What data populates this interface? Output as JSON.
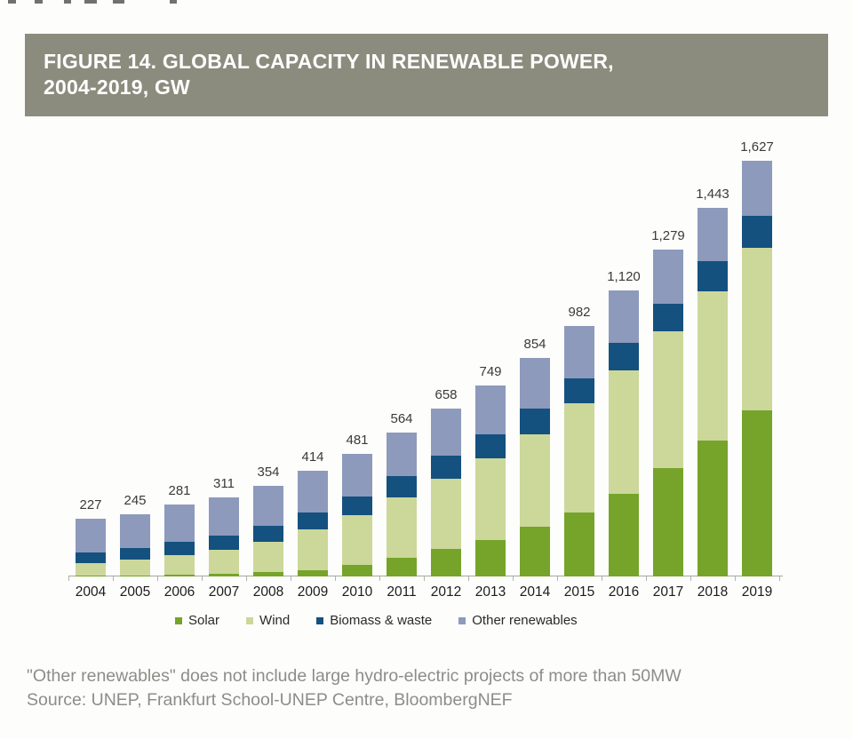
{
  "figure": {
    "title_line1": "FIGURE 14. GLOBAL CAPACITY IN RENEWABLE POWER,",
    "title_line2": "2004-2019, GW"
  },
  "footnote": "\"Other renewables\" does not include large hydro-electric projects of more than 50MW",
  "source": "Source: UNEP, Frankfurt School-UNEP Centre, BloombergNEF",
  "chart_data": {
    "type": "bar",
    "stacked": true,
    "title": "FIGURE 14. GLOBAL CAPACITY IN RENEWABLE POWER, 2004-2019, GW",
    "unit": "GW",
    "grid": false,
    "legend_position": "bottom",
    "ylim": [
      0,
      1700
    ],
    "categories": [
      "2004",
      "2005",
      "2006",
      "2007",
      "2008",
      "2009",
      "2010",
      "2011",
      "2012",
      "2013",
      "2014",
      "2015",
      "2016",
      "2017",
      "2018",
      "2019"
    ],
    "series": [
      {
        "name": "Solar",
        "color": "#76a42a",
        "values": [
          4,
          5,
          7,
          10,
          16,
          25,
          45,
          72,
          107,
          141,
          193,
          249,
          324,
          425,
          531,
          651
        ]
      },
      {
        "name": "Wind",
        "color": "#ccd79a",
        "values": [
          48,
          60,
          76,
          94,
          121,
          160,
          195,
          237,
          274,
          321,
          365,
          428,
          481,
          534,
          586,
          637
        ]
      },
      {
        "name": "Biomass & waste",
        "color": "#14517f",
        "values": [
          42,
          47,
          52,
          57,
          62,
          65,
          73,
          83,
          93,
          93,
          98,
          98,
          109,
          109,
          119,
          125
        ]
      },
      {
        "name": "Other renewables",
        "color": "#8d9abc",
        "values": [
          133,
          133,
          146,
          150,
          155,
          164,
          168,
          172,
          184,
          194,
          198,
          207,
          206,
          211,
          207,
          214
        ]
      }
    ],
    "totals": [
      227,
      245,
      281,
      311,
      354,
      414,
      481,
      564,
      658,
      749,
      854,
      982,
      1120,
      1279,
      1443,
      1627
    ],
    "total_labels": [
      "227",
      "245",
      "281",
      "311",
      "354",
      "414",
      "481",
      "564",
      "658",
      "749",
      "854",
      "982",
      "1,120",
      "1,279",
      "1,443",
      "1,627"
    ]
  },
  "colors": {
    "title_bar_bg": "#8c8c7e",
    "title_text": "#ffffff",
    "axis": "#a7a7a1",
    "value_label": "#3a3a3a",
    "year_label": "#1c1c1c",
    "caption_text": "#8d8d88",
    "background": "#fdfdfb"
  }
}
